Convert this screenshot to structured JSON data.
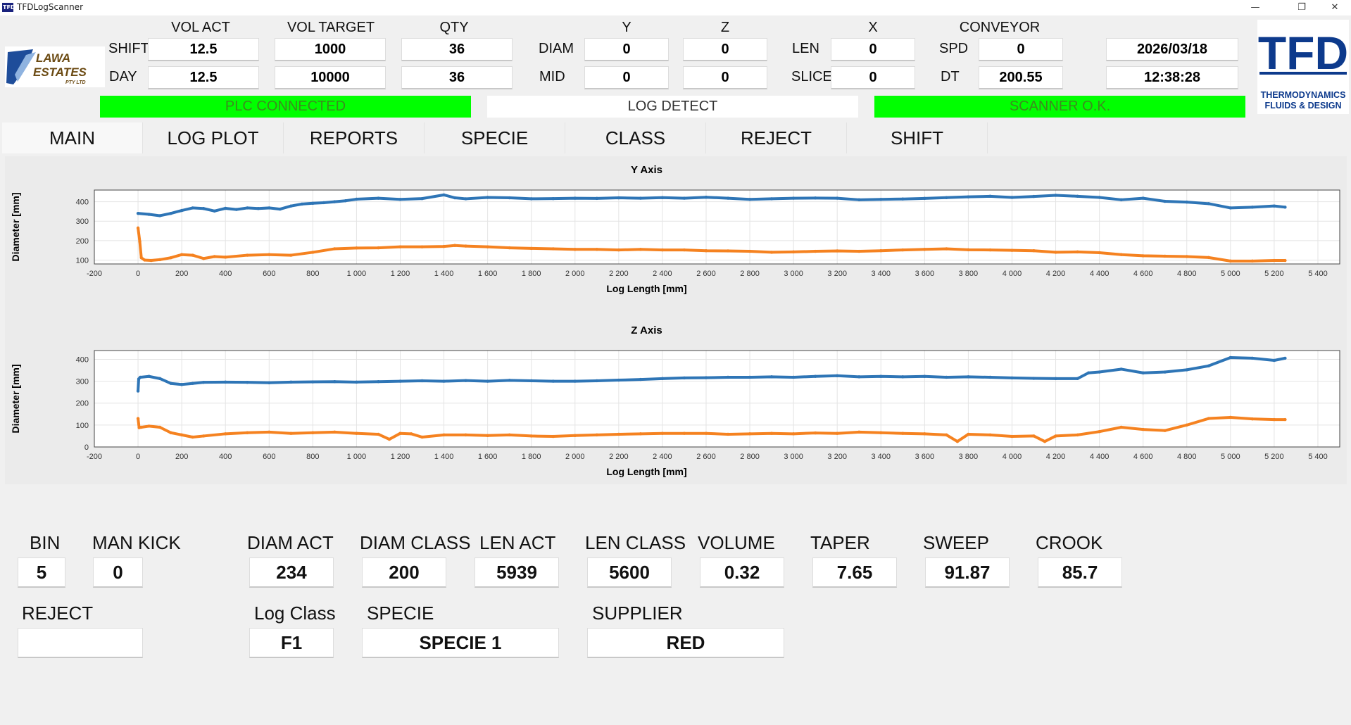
{
  "window": {
    "title": "TFDLogScanner",
    "icon": "tfd-app-icon",
    "icon_text": "TFD"
  },
  "header": {
    "col_labels": {
      "vol_act": "VOL ACT",
      "vol_target": "VOL TARGET",
      "qty": "QTY",
      "y": "Y",
      "z": "Z",
      "x": "X",
      "conveyor": "CONVEYOR"
    },
    "row_labels": {
      "shift": "SHIFT",
      "day": "DAY",
      "diam": "DIAM",
      "mid": "MID",
      "len": "LEN",
      "slice": "SLICE",
      "spd": "SPD",
      "dt": "DT"
    },
    "values": {
      "shift_vol_act": "12.5",
      "shift_vol_target": "1000",
      "shift_qty": "36",
      "day_vol_act": "12.5",
      "day_vol_target": "10000",
      "day_qty": "36",
      "diam_y": "0",
      "diam_z": "0",
      "mid_y": "0",
      "mid_z": "0",
      "len_x": "0",
      "slice_x": "0",
      "spd": "0",
      "dt": "200.55",
      "date": "2026/03/18",
      "time": "12:38:28"
    }
  },
  "logos": {
    "customer": {
      "line1": "LAWA",
      "line2": "ESTATES",
      "line3": "PTY LTD"
    },
    "vendor": {
      "mark": "TFD",
      "line1": "THERMODYNAMICS",
      "line2": "FLUIDS & DESIGN"
    }
  },
  "status": {
    "plc": "PLC CONNECTED",
    "log_detect": "LOG DETECT",
    "scanner": "SCANNER O.K.",
    "colors": {
      "ok": "#00ff00",
      "ok_text": "#3c8c1e",
      "idle": "#ffffff",
      "idle_text": "#333333"
    }
  },
  "tabs": [
    "MAIN",
    "LOG PLOT",
    "REPORTS",
    "SPECIE",
    "CLASS",
    "REJECT",
    "SHIFT"
  ],
  "active_tab": "MAIN",
  "chart_data": [
    {
      "type": "line",
      "title": "Y Axis",
      "xlabel": "Log Length [mm]",
      "ylabel": "Diameter [mm]",
      "xlim": [
        -200,
        5500
      ],
      "ylim": [
        80,
        460
      ],
      "xticks": [
        "-200",
        "0",
        "200",
        "400",
        "600",
        "800",
        "1 000",
        "1 200",
        "1 400",
        "1 600",
        "1 800",
        "2 000",
        "2 200",
        "2 400",
        "2 600",
        "2 800",
        "3 000",
        "3 200",
        "3 400",
        "3 600",
        "3 800",
        "4 000",
        "4 200",
        "4 400",
        "4 600",
        "4 800",
        "5 000",
        "5 200",
        "5 400"
      ],
      "yticks": [
        "100",
        "200",
        "300",
        "400"
      ],
      "grid": true,
      "series": [
        {
          "color": "#2e75b6",
          "x": [
            0,
            50,
            100,
            150,
            200,
            250,
            300,
            350,
            400,
            450,
            500,
            550,
            600,
            650,
            700,
            750,
            800,
            850,
            900,
            950,
            1000,
            1100,
            1200,
            1300,
            1400,
            1450,
            1500,
            1600,
            1700,
            1800,
            1900,
            2000,
            2100,
            2200,
            2300,
            2400,
            2500,
            2600,
            2700,
            2800,
            2900,
            3000,
            3100,
            3200,
            3300,
            3400,
            3500,
            3600,
            3700,
            3800,
            3900,
            4000,
            4100,
            4200,
            4300,
            4400,
            4500,
            4600,
            4700,
            4800,
            4900,
            5000,
            5100,
            5200,
            5250
          ],
          "y": [
            340,
            335,
            328,
            340,
            355,
            368,
            365,
            352,
            366,
            360,
            368,
            365,
            368,
            362,
            378,
            388,
            392,
            395,
            400,
            405,
            413,
            418,
            412,
            416,
            435,
            420,
            415,
            422,
            420,
            415,
            416,
            418,
            417,
            420,
            418,
            421,
            418,
            423,
            418,
            412,
            415,
            418,
            419,
            418,
            410,
            412,
            414,
            417,
            421,
            425,
            428,
            422,
            427,
            433,
            428,
            422,
            410,
            418,
            402,
            398,
            390,
            368,
            372,
            378,
            372
          ]
        },
        {
          "color": "#f58220",
          "x": [
            0,
            8,
            15,
            30,
            60,
            100,
            150,
            200,
            250,
            300,
            350,
            400,
            500,
            600,
            700,
            800,
            900,
            1000,
            1100,
            1200,
            1300,
            1400,
            1450,
            1500,
            1600,
            1700,
            1800,
            1900,
            2000,
            2100,
            2200,
            2300,
            2400,
            2500,
            2600,
            2700,
            2800,
            2900,
            3000,
            3100,
            3200,
            3300,
            3400,
            3500,
            3600,
            3700,
            3800,
            3900,
            4000,
            4100,
            4200,
            4300,
            4400,
            4500,
            4600,
            4700,
            4800,
            4900,
            5000,
            5100,
            5200,
            5250
          ],
          "y": [
            265,
            195,
            112,
            100,
            98,
            102,
            112,
            128,
            125,
            108,
            118,
            115,
            125,
            128,
            125,
            140,
            158,
            162,
            163,
            168,
            168,
            170,
            175,
            172,
            168,
            163,
            160,
            158,
            155,
            155,
            152,
            155,
            152,
            152,
            148,
            147,
            145,
            140,
            142,
            145,
            147,
            145,
            148,
            152,
            155,
            158,
            153,
            152,
            150,
            148,
            140,
            142,
            138,
            128,
            122,
            120,
            118,
            113,
            95,
            95,
            98,
            98
          ]
        }
      ]
    },
    {
      "type": "line",
      "title": "Z Axis",
      "xlabel": "Log Length [mm]",
      "ylabel": "Diameter [mm]",
      "xlim": [
        -200,
        5500
      ],
      "ylim": [
        0,
        440
      ],
      "xticks": [
        "-200",
        "0",
        "200",
        "400",
        "600",
        "800",
        "1 000",
        "1 200",
        "1 400",
        "1 600",
        "1 800",
        "2 000",
        "2 200",
        "2 400",
        "2 600",
        "2 800",
        "3 000",
        "3 200",
        "3 400",
        "3 600",
        "3 800",
        "4 000",
        "4 200",
        "4 400",
        "4 600",
        "4 800",
        "5 000",
        "5 200",
        "5 400"
      ],
      "yticks": [
        "0",
        "100",
        "200",
        "300",
        "400"
      ],
      "grid": true,
      "series": [
        {
          "color": "#2e75b6",
          "x": [
            0,
            3,
            10,
            50,
            100,
            150,
            200,
            250,
            300,
            400,
            500,
            600,
            700,
            800,
            900,
            1000,
            1100,
            1200,
            1300,
            1400,
            1500,
            1600,
            1700,
            1800,
            1900,
            2000,
            2100,
            2200,
            2300,
            2400,
            2500,
            2600,
            2700,
            2800,
            2900,
            3000,
            3100,
            3200,
            3300,
            3400,
            3500,
            3600,
            3700,
            3800,
            3900,
            4000,
            4100,
            4200,
            4300,
            4350,
            4400,
            4500,
            4600,
            4700,
            4800,
            4900,
            5000,
            5100,
            5200,
            5250
          ],
          "y": [
            255,
            310,
            318,
            322,
            312,
            290,
            285,
            290,
            295,
            296,
            295,
            293,
            296,
            297,
            298,
            296,
            298,
            300,
            302,
            300,
            303,
            300,
            304,
            302,
            300,
            300,
            302,
            305,
            308,
            312,
            315,
            316,
            318,
            318,
            320,
            318,
            322,
            325,
            320,
            322,
            320,
            322,
            318,
            320,
            318,
            315,
            313,
            312,
            312,
            338,
            342,
            355,
            338,
            342,
            352,
            370,
            408,
            405,
            395,
            405
          ]
        },
        {
          "color": "#f58220",
          "x": [
            0,
            5,
            15,
            50,
            100,
            150,
            200,
            250,
            300,
            400,
            500,
            600,
            700,
            800,
            900,
            1000,
            1100,
            1150,
            1200,
            1250,
            1300,
            1400,
            1500,
            1600,
            1700,
            1800,
            1900,
            2000,
            2100,
            2200,
            2300,
            2400,
            2500,
            2600,
            2700,
            2800,
            2900,
            3000,
            3100,
            3200,
            3300,
            3400,
            3500,
            3600,
            3700,
            3750,
            3800,
            3900,
            4000,
            4100,
            4150,
            4200,
            4300,
            4400,
            4500,
            4600,
            4700,
            4800,
            4900,
            5000,
            5100,
            5200,
            5250
          ],
          "y": [
            130,
            88,
            90,
            95,
            90,
            65,
            55,
            45,
            50,
            60,
            65,
            68,
            62,
            65,
            68,
            62,
            58,
            35,
            62,
            60,
            45,
            55,
            55,
            52,
            55,
            50,
            48,
            52,
            55,
            58,
            60,
            62,
            62,
            62,
            58,
            60,
            62,
            60,
            64,
            62,
            68,
            65,
            62,
            60,
            55,
            25,
            58,
            55,
            48,
            50,
            25,
            50,
            55,
            70,
            90,
            80,
            75,
            100,
            130,
            135,
            128,
            125,
            125
          ]
        }
      ]
    }
  ],
  "bottom": {
    "labels": {
      "bin": "BIN",
      "man_kick": "MAN KICK",
      "diam_act": "DIAM ACT",
      "diam_class": "DIAM CLASS",
      "len_act": "LEN ACT",
      "len_class": "LEN CLASS",
      "volume": "VOLUME",
      "taper": "TAPER",
      "sweep": "SWEEP",
      "crook": "CROOK",
      "reject": "REJECT",
      "log_class": "Log Class",
      "specie": "SPECIE",
      "supplier": "SUPPLIER"
    },
    "values": {
      "bin": "5",
      "man_kick": "0",
      "diam_act": "234",
      "diam_class": "200",
      "len_act": "5939",
      "len_class": "5600",
      "volume": "0.32",
      "taper": "7.65",
      "sweep": "91.87",
      "crook": "85.7",
      "reject": "",
      "log_class": "F1",
      "specie": "SPECIE 1",
      "supplier": "RED"
    }
  }
}
